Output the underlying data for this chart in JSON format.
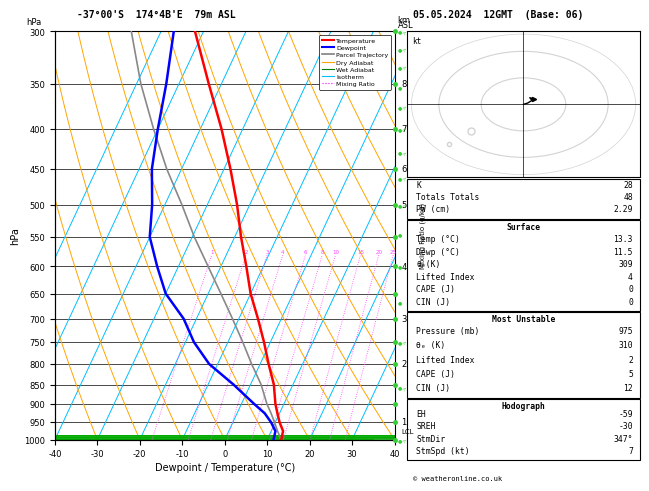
{
  "title_left": "-37°00'S  174°4B'E  79m ASL",
  "title_right": "05.05.2024  12GMT  (Base: 06)",
  "xlabel": "Dewpoint / Temperature (°C)",
  "ylabel_left": "hPa",
  "pressure_levels": [
    300,
    350,
    400,
    450,
    500,
    550,
    600,
    650,
    700,
    750,
    800,
    850,
    900,
    950,
    1000
  ],
  "xlim": [
    -40,
    40
  ],
  "pmin": 300,
  "pmax": 1000,
  "temp_profile": {
    "pressure": [
      1000,
      975,
      950,
      925,
      900,
      850,
      800,
      750,
      700,
      650,
      600,
      550,
      500,
      450,
      400,
      350,
      300
    ],
    "temperature": [
      13.3,
      12.8,
      11.0,
      9.5,
      8.0,
      5.5,
      2.0,
      -1.5,
      -5.5,
      -10.0,
      -14.0,
      -18.5,
      -23.0,
      -28.5,
      -35.0,
      -43.0,
      -52.0
    ]
  },
  "dewp_profile": {
    "pressure": [
      1000,
      975,
      950,
      925,
      900,
      850,
      800,
      750,
      700,
      650,
      600,
      550,
      500,
      450,
      400,
      350,
      300
    ],
    "dewpoint": [
      11.5,
      11.0,
      9.0,
      6.5,
      3.0,
      -4.0,
      -12.0,
      -18.0,
      -23.0,
      -30.0,
      -35.0,
      -40.0,
      -43.0,
      -47.0,
      -50.0,
      -53.0,
      -57.0
    ]
  },
  "parcel_profile": {
    "pressure": [
      1000,
      975,
      950,
      925,
      900,
      850,
      800,
      750,
      700,
      650,
      600,
      550,
      500,
      450,
      400,
      350,
      300
    ],
    "temperature": [
      13.3,
      11.5,
      9.8,
      8.0,
      6.0,
      2.5,
      -2.0,
      -6.5,
      -11.5,
      -17.0,
      -23.0,
      -29.5,
      -36.0,
      -43.5,
      -51.0,
      -59.0,
      -67.0
    ]
  },
  "isotherm_color": "#00bfff",
  "dry_adiabat_color": "#ffa500",
  "wet_adiabat_color": "#00aa00",
  "mixing_ratio_color": "#ff44ff",
  "temp_color": "#ff0000",
  "dewp_color": "#0000ff",
  "parcel_color": "#888888",
  "skew_factor": 45,
  "km_ticks": {
    "8": 350,
    "7": 400,
    "6": 450,
    "5": 500,
    "4": 600,
    "3": 700,
    "2": 800,
    "1": 950
  },
  "mixing_ratio_values": [
    1,
    2,
    3,
    4,
    6,
    8,
    10,
    15,
    20,
    25
  ],
  "info": {
    "K": 28,
    "Totals_Totals": 48,
    "PW_cm": "2.29",
    "Surface_Temp": "13.3",
    "Surface_Dewp": "11.5",
    "Surface_thetae": 309,
    "Surface_LI": 4,
    "Surface_CAPE": 0,
    "Surface_CIN": 0,
    "MU_Pressure": 975,
    "MU_thetae": 310,
    "MU_LI": 2,
    "MU_CAPE": 5,
    "MU_CIN": 12,
    "EH": -59,
    "SREH": -30,
    "StmDir": "347°",
    "StmSpd": 7
  },
  "lcl_pressure": 975,
  "wind_pressures": [
    300,
    350,
    400,
    450,
    500,
    550,
    600,
    650,
    700,
    750,
    800,
    850,
    900,
    950,
    1000
  ],
  "wind_colors_green": [
    300,
    350,
    400,
    450,
    500,
    550,
    600,
    650,
    700,
    750,
    800,
    850,
    900,
    950,
    1000
  ]
}
